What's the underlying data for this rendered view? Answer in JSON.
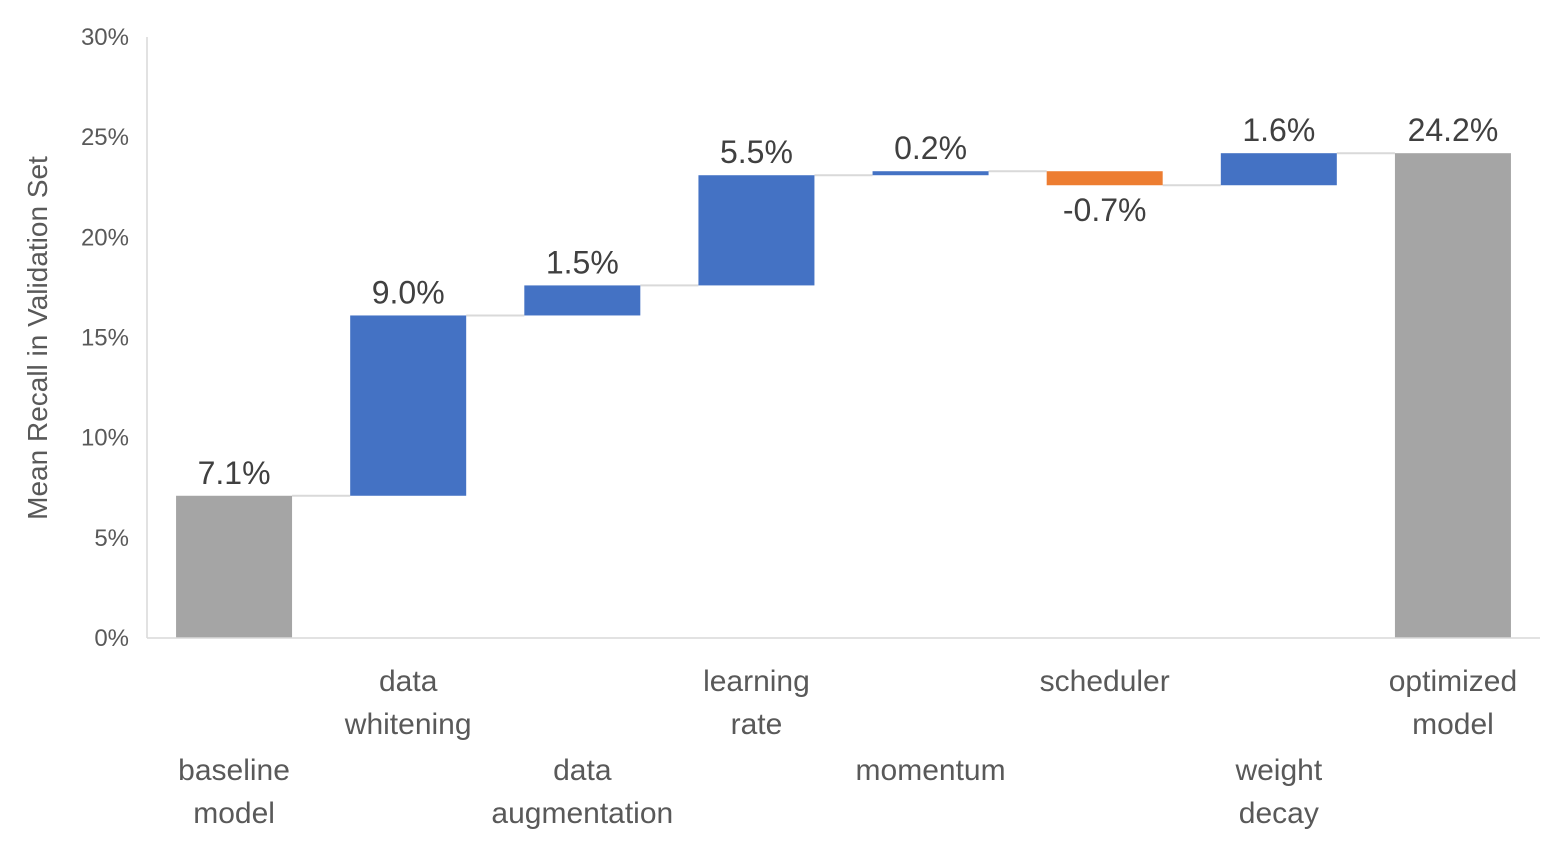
{
  "chart_data": {
    "type": "bar",
    "subtype": "waterfall",
    "title": "",
    "xlabel": "",
    "ylabel": "Mean Recall in Validation Set",
    "ylim": [
      0,
      30
    ],
    "yticks": [
      "0%",
      "5%",
      "10%",
      "15%",
      "20%",
      "25%",
      "30%"
    ],
    "grid": false,
    "legend": "none",
    "categories": [
      {
        "lines": [
          "baseline",
          "model"
        ],
        "row": "lower"
      },
      {
        "lines": [
          "data",
          "whitening"
        ],
        "row": "upper"
      },
      {
        "lines": [
          "data",
          "augmentation"
        ],
        "row": "lower"
      },
      {
        "lines": [
          "learning",
          "rate"
        ],
        "row": "upper"
      },
      {
        "lines": [
          "momentum"
        ],
        "row": "lower"
      },
      {
        "lines": [
          "scheduler"
        ],
        "row": "upper"
      },
      {
        "lines": [
          "weight",
          "decay"
        ],
        "row": "lower"
      },
      {
        "lines": [
          "optimized",
          "model"
        ],
        "row": "upper"
      }
    ],
    "bars": [
      {
        "kind": "total",
        "start": 0,
        "value": 7.1,
        "label": "7.1%"
      },
      {
        "kind": "increase",
        "start": 7.1,
        "value": 9.0,
        "label": "9.0%"
      },
      {
        "kind": "increase",
        "start": 16.1,
        "value": 1.5,
        "label": "1.5%"
      },
      {
        "kind": "increase",
        "start": 17.6,
        "value": 5.5,
        "label": "5.5%"
      },
      {
        "kind": "increase",
        "start": 23.1,
        "value": 0.2,
        "label": "0.2%"
      },
      {
        "kind": "decrease",
        "start": 23.3,
        "value": -0.7,
        "label": "-0.7%"
      },
      {
        "kind": "increase",
        "start": 22.6,
        "value": 1.6,
        "label": "1.6%"
      },
      {
        "kind": "total",
        "start": 0,
        "value": 24.2,
        "label": "24.2%"
      }
    ],
    "colors": {
      "total": "#a5a5a5",
      "increase": "#4472c4",
      "decrease": "#ed7d31",
      "axis": "#d9d9d9",
      "connector": "#d9d9d9"
    }
  }
}
